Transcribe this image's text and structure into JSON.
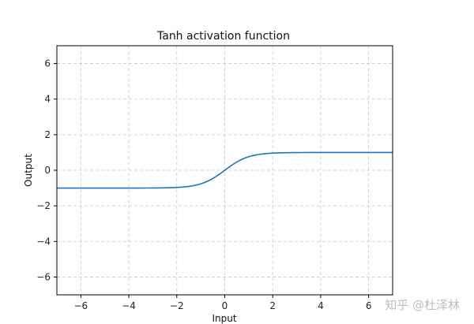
{
  "chart_data": {
    "type": "line",
    "title": "Tanh activation function",
    "xlabel": "Input",
    "ylabel": "Output",
    "xlim": [
      -7,
      7
    ],
    "ylim": [
      -7,
      7
    ],
    "xticks": [
      -6,
      -4,
      -2,
      0,
      2,
      4,
      6
    ],
    "yticks": [
      -6,
      -4,
      -2,
      0,
      2,
      4,
      6
    ],
    "grid": true,
    "grid_style": "dashed",
    "series": [
      {
        "function": "tanh",
        "color": "#1f77b4",
        "x": [
          -7,
          -6,
          -5,
          -4,
          -3,
          -2,
          -1.5,
          -1,
          -0.5,
          0,
          0.5,
          1,
          1.5,
          2,
          3,
          4,
          5,
          6,
          7
        ],
        "y": [
          -1.0,
          -1.0,
          -0.9999,
          -0.9993,
          -0.9951,
          -0.964,
          -0.9051,
          -0.7616,
          -0.4621,
          0.0,
          0.4621,
          0.7616,
          0.9051,
          0.964,
          0.9951,
          0.9993,
          0.9999,
          1.0,
          1.0
        ]
      }
    ]
  },
  "watermark": "知乎 @杜泽林"
}
